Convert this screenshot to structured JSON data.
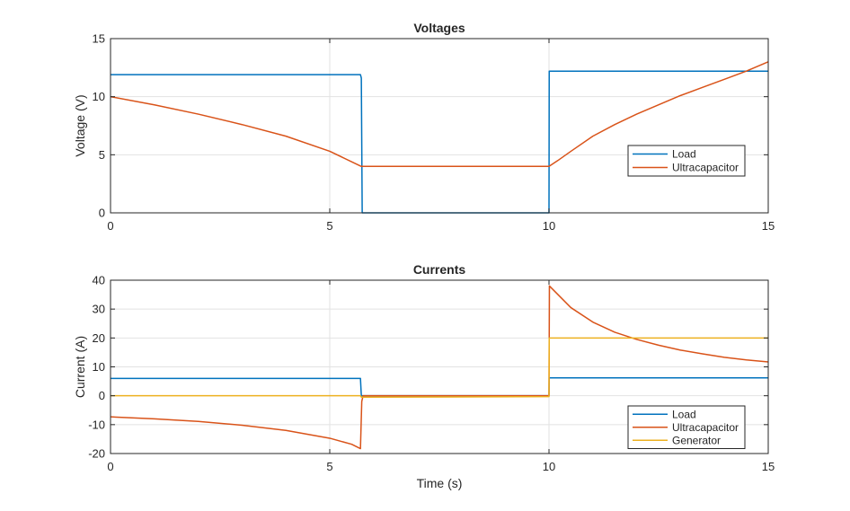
{
  "chart_data": [
    {
      "type": "line",
      "title": "Voltages",
      "xlabel": "",
      "ylabel": "Voltage (V)",
      "xlim": [
        0,
        15
      ],
      "ylim": [
        0,
        15
      ],
      "xticks": [
        0,
        5,
        10,
        15
      ],
      "yticks": [
        0,
        5,
        10,
        15
      ],
      "grid": true,
      "legend_location": "right, lower-middle",
      "series": [
        {
          "name": "Load",
          "color": "#0072BD",
          "points": [
            [
              0,
              11.9
            ],
            [
              5.7,
              11.9
            ],
            [
              5.72,
              11.6
            ],
            [
              5.74,
              0
            ],
            [
              10,
              0
            ],
            [
              10.005,
              12.2
            ],
            [
              15,
              12.2
            ]
          ]
        },
        {
          "name": "Ultracapacitor",
          "color": "#D95319",
          "points": [
            [
              0,
              10.0
            ],
            [
              1,
              9.3
            ],
            [
              2,
              8.5
            ],
            [
              3,
              7.6
            ],
            [
              4,
              6.6
            ],
            [
              5,
              5.3
            ],
            [
              5.72,
              4.0
            ],
            [
              10,
              4.0
            ],
            [
              10.2,
              4.5
            ],
            [
              10.5,
              5.3
            ],
            [
              11,
              6.6
            ],
            [
              11.5,
              7.6
            ],
            [
              12,
              8.5
            ],
            [
              12.5,
              9.3
            ],
            [
              13,
              10.1
            ],
            [
              13.5,
              10.8
            ],
            [
              14,
              11.5
            ],
            [
              14.5,
              12.2
            ],
            [
              15,
              13.0
            ]
          ]
        }
      ]
    },
    {
      "type": "line",
      "title": "Currents",
      "xlabel": "Time (s)",
      "ylabel": "Current (A)",
      "xlim": [
        0,
        15
      ],
      "ylim": [
        -20,
        40
      ],
      "xticks": [
        0,
        5,
        10,
        15
      ],
      "yticks": [
        -20,
        -10,
        0,
        10,
        20,
        30,
        40
      ],
      "grid": true,
      "legend_location": "bottom-right",
      "series": [
        {
          "name": "Load",
          "color": "#0072BD",
          "points": [
            [
              0,
              6
            ],
            [
              5.7,
              6
            ],
            [
              5.72,
              0
            ],
            [
              10,
              0
            ],
            [
              10.005,
              6.2
            ],
            [
              15,
              6.2
            ]
          ]
        },
        {
          "name": "Ultracapacitor",
          "color": "#D95319",
          "points": [
            [
              0,
              -7.3
            ],
            [
              1,
              -8.0
            ],
            [
              2,
              -8.9
            ],
            [
              3,
              -10.2
            ],
            [
              4,
              -12.0
            ],
            [
              5,
              -14.7
            ],
            [
              5.5,
              -16.8
            ],
            [
              5.7,
              -18.3
            ],
            [
              5.73,
              -2
            ],
            [
              5.76,
              0
            ],
            [
              10,
              0
            ],
            [
              10.01,
              38.0
            ],
            [
              10.5,
              30.5
            ],
            [
              11,
              25.5
            ],
            [
              11.5,
              22.0
            ],
            [
              12,
              19.5
            ],
            [
              12.5,
              17.5
            ],
            [
              13,
              15.8
            ],
            [
              13.5,
              14.5
            ],
            [
              14,
              13.3
            ],
            [
              14.5,
              12.4
            ],
            [
              15,
              11.7
            ]
          ]
        },
        {
          "name": "Generator",
          "color": "#EDB120",
          "points": [
            [
              0,
              0
            ],
            [
              5.7,
              0
            ],
            [
              5.72,
              -0.5
            ],
            [
              10,
              -0.3
            ],
            [
              10.005,
              20
            ],
            [
              15,
              20
            ]
          ]
        }
      ]
    }
  ]
}
